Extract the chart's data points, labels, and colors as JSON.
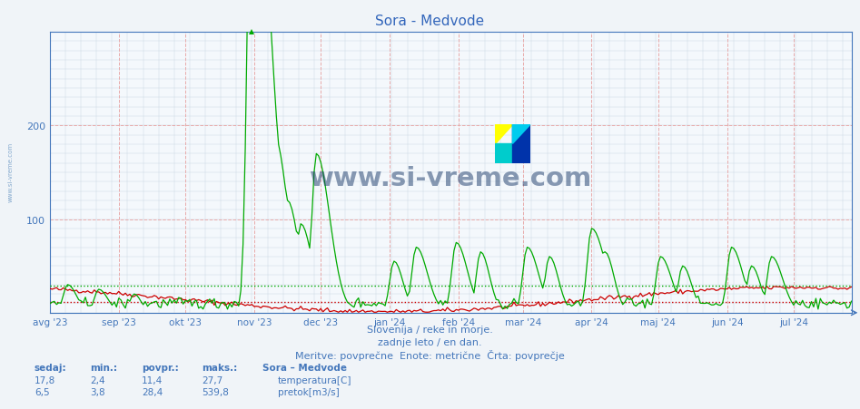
{
  "title": "Sora - Medvode",
  "background_color": "#f0f4f8",
  "plot_bg_color": "#f4f8fc",
  "title_color": "#3366bb",
  "axis_color": "#4477bb",
  "label_color": "#4477bb",
  "temp_color": "#cc0000",
  "flow_color": "#00aa00",
  "temp_avg": 11.4,
  "flow_avg": 28.4,
  "temp_min": 2.4,
  "temp_max": 27.7,
  "flow_min": 3.8,
  "flow_max": 539.8,
  "temp_current": 17.8,
  "flow_current": 6.5,
  "ylim": [
    0,
    300
  ],
  "yticks": [
    100,
    200
  ],
  "subtitle1": "Slovenija / reke in morje.",
  "subtitle2": "zadnje leto / en dan.",
  "subtitle3": "Meritve: povprečne  Enote: metrične  Črta: povprečje",
  "legend_title": "Sora – Medvode",
  "legend_temp": "temperatura[C]",
  "legend_flow": "pretok[m3/s]",
  "watermark": "www.si-vreme.com",
  "watermark_color": "#1a3a6a",
  "months_labels": [
    "avg '23",
    "sep '23",
    "okt '23",
    "nov '23",
    "dec '23",
    "jan '24",
    "feb '24",
    "mar '24",
    "apr '24",
    "maj '24",
    "jun '24",
    "jul '24"
  ],
  "months_positions": [
    0,
    31,
    61,
    92,
    122,
    153,
    184,
    213,
    244,
    274,
    305,
    335
  ],
  "n_days": 362
}
